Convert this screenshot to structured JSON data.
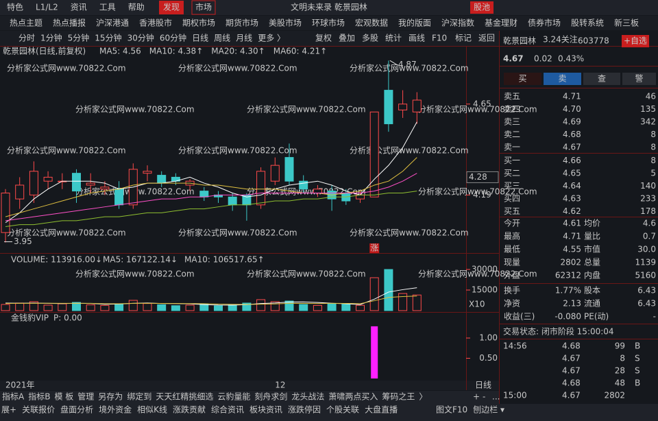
{
  "top_menu": [
    "特色",
    "L1/L2",
    "资讯",
    "工具",
    "帮助"
  ],
  "discover": "发现",
  "market": "市场",
  "window_title": "文明未来录  乾景园林",
  "stock_pool": "股池",
  "hot_tabs": [
    "热点主题",
    "热点播报",
    "沪深港通",
    "香港股市",
    "期权市场",
    "期货市场",
    "美股市场",
    "环球市场",
    "宏观数据",
    "我的版面",
    "沪深指数",
    "基金理财",
    "债券市场",
    "股转系统",
    "新三板"
  ],
  "periods": [
    "分时",
    "1分钟",
    "5分钟",
    "15分钟",
    "30分钟",
    "60分钟",
    "日线",
    "周线",
    "月线",
    "更多 〉"
  ],
  "period_active": 6,
  "tools": [
    "复权",
    "叠加",
    "多股",
    "统计",
    "画线",
    "F10",
    "标记",
    "返回"
  ],
  "watermark": "分析家公式网www.70822.Com",
  "kline": {
    "title": "乾景园林(日线,前复权)",
    "up_color": "#ff4a4a",
    "down_color": "#3cc8c8",
    "ylim": [
      3.9,
      4.885
    ],
    "yticks": [
      4.19,
      4.65
    ],
    "cursor_price": 4.28,
    "high_label": 4.87,
    "low_label": 3.95,
    "candles": [
      {
        "open": 4.0,
        "high": 4.22,
        "low": 3.95,
        "close": 4.2
      },
      {
        "open": 4.17,
        "high": 4.28,
        "low": 4.12,
        "close": 4.24
      },
      {
        "open": 4.19,
        "high": 4.36,
        "low": 4.15,
        "close": 4.31
      },
      {
        "open": 4.26,
        "high": 4.31,
        "low": 4.22,
        "close": 4.28
      },
      {
        "open": 4.26,
        "high": 4.3,
        "low": 4.22,
        "close": 4.26
      },
      {
        "open": 4.3,
        "high": 4.32,
        "low": 4.15,
        "close": 4.21
      },
      {
        "open": 4.24,
        "high": 4.3,
        "low": 4.2,
        "close": 4.25
      },
      {
        "open": 4.22,
        "high": 4.26,
        "low": 4.19,
        "close": 4.23
      },
      {
        "open": 4.22,
        "high": 4.26,
        "low": 4.12,
        "close": 4.14
      },
      {
        "open": 4.14,
        "high": 4.35,
        "low": 4.12,
        "close": 4.32
      },
      {
        "open": 4.3,
        "high": 4.34,
        "low": 4.26,
        "close": 4.31
      },
      {
        "open": 4.29,
        "high": 4.31,
        "low": 4.23,
        "close": 4.25
      },
      {
        "open": 4.28,
        "high": 4.3,
        "low": 4.24,
        "close": 4.26
      },
      {
        "open": 4.24,
        "high": 4.27,
        "low": 4.21,
        "close": 4.26
      },
      {
        "open": 4.21,
        "high": 4.23,
        "low": 4.16,
        "close": 4.18
      },
      {
        "open": 4.19,
        "high": 4.21,
        "low": 4.15,
        "close": 4.18
      },
      {
        "open": 4.18,
        "high": 4.2,
        "low": 4.11,
        "close": 4.14
      },
      {
        "open": 4.19,
        "high": 4.2,
        "low": 4.06,
        "close": 4.14
      },
      {
        "open": 4.14,
        "high": 4.33,
        "low": 4.12,
        "close": 4.31
      },
      {
        "open": 4.26,
        "high": 4.38,
        "low": 4.24,
        "close": 4.34
      },
      {
        "open": 4.38,
        "high": 4.45,
        "low": 4.24,
        "close": 4.26
      },
      {
        "open": 4.26,
        "high": 4.29,
        "low": 4.2,
        "close": 4.22
      },
      {
        "open": 4.2,
        "high": 4.24,
        "low": 4.18,
        "close": 4.22
      },
      {
        "open": 4.21,
        "high": 4.24,
        "low": 4.11,
        "close": 4.17
      },
      {
        "open": 4.2,
        "high": 4.22,
        "low": 4.14,
        "close": 4.16
      },
      {
        "open": 4.17,
        "high": 4.21,
        "low": 4.15,
        "close": 4.19
      },
      {
        "open": 4.18,
        "high": 4.61,
        "low": 4.18,
        "close": 4.61
      },
      {
        "open": 4.72,
        "high": 4.87,
        "low": 4.51,
        "close": 4.55
      },
      {
        "open": 4.62,
        "high": 4.72,
        "low": 4.58,
        "close": 4.65
      },
      {
        "open": 4.61,
        "high": 4.71,
        "low": 4.55,
        "close": 4.67
      }
    ],
    "ma": [
      {
        "name": "MA5: 4.56",
        "color": "#ffffff",
        "values": [
          4.05,
          4.1,
          4.17,
          4.22,
          4.26,
          4.26,
          4.26,
          4.25,
          4.22,
          4.23,
          4.25,
          4.25,
          4.26,
          4.28,
          4.25,
          4.23,
          4.2,
          4.18,
          4.19,
          4.22,
          4.24,
          4.25,
          4.26,
          4.24,
          4.21,
          4.19,
          4.27,
          4.34,
          4.43,
          4.56
        ]
      },
      {
        "name": "MA10: 4.38↑",
        "color": "#e0c040",
        "values": [
          4.08,
          4.1,
          4.12,
          4.14,
          4.16,
          4.18,
          4.2,
          4.21,
          4.22,
          4.24,
          4.25,
          4.25,
          4.25,
          4.25,
          4.24,
          4.24,
          4.23,
          4.22,
          4.22,
          4.22,
          4.21,
          4.2,
          4.2,
          4.19,
          4.2,
          4.21,
          4.24,
          4.26,
          4.31,
          4.38
        ]
      },
      {
        "name": "MA20: 4.30↑",
        "color": "#ff50c8",
        "values": [
          4.06,
          4.07,
          4.08,
          4.09,
          4.1,
          4.11,
          4.12,
          4.13,
          4.14,
          4.15,
          4.16,
          4.17,
          4.17,
          4.18,
          4.18,
          4.19,
          4.19,
          4.19,
          4.2,
          4.2,
          4.2,
          4.2,
          4.2,
          4.2,
          4.2,
          4.2,
          4.21,
          4.23,
          4.26,
          4.3
        ]
      },
      {
        "name": "MA60: 4.21↑",
        "color": "#90c030",
        "values": [
          4.03,
          4.04,
          4.04,
          4.05,
          4.06,
          4.06,
          4.07,
          4.08,
          4.08,
          4.09,
          4.1,
          4.1,
          4.11,
          4.12,
          4.12,
          4.13,
          4.14,
          4.14,
          4.15,
          4.16,
          4.16,
          4.17,
          4.17,
          4.18,
          4.18,
          4.19,
          4.19,
          4.2,
          4.2,
          4.21
        ]
      }
    ],
    "signal_labels": [
      null,
      null,
      null,
      null,
      null,
      null,
      null,
      null,
      null,
      null,
      null,
      null,
      null,
      null,
      null,
      null,
      null,
      null,
      null,
      null,
      null,
      null,
      null,
      null,
      null,
      null,
      "涨",
      null,
      null,
      null
    ],
    "dates": [
      "2021年",
      null,
      null,
      null,
      null,
      null,
      null,
      null,
      null,
      null,
      null,
      null,
      null,
      null,
      null,
      null,
      null,
      null,
      null,
      "12",
      null,
      null,
      null,
      null,
      null,
      null,
      null,
      null,
      null,
      null
    ],
    "period_label": "日线"
  },
  "volume": {
    "legend": "VOLUME: 113916.00↓",
    "ylim": [
      0,
      34000
    ],
    "yticks": [
      15000,
      30000
    ],
    "unit": "X10",
    "values": [
      4500,
      5500,
      6500,
      4000,
      5000,
      6000,
      4200,
      3800,
      5000,
      7500,
      5200,
      4300,
      3600,
      4000,
      4800,
      3500,
      4200,
      5500,
      8000,
      6500,
      7000,
      4500,
      3800,
      5200,
      4600,
      3900,
      24000,
      30000,
      12500,
      11391.6
    ],
    "ma": [
      {
        "name": "MA5: 167122.14↓",
        "color": "#ffffff",
        "values": [
          5500,
          5400,
          5500,
          5300,
          5100,
          5400,
          5240,
          4600,
          4800,
          5300,
          5540,
          5160,
          5120,
          4920,
          4380,
          4040,
          4020,
          4360,
          5200,
          5540,
          6240,
          6300,
          5960,
          5400,
          5020,
          4400,
          8340,
          13540,
          15280,
          16712.214
        ]
      },
      {
        "name": "MA10: 106517.65↑",
        "color": "#e0c040",
        "values": [
          5200,
          5300,
          5300,
          5400,
          5300,
          5300,
          5300,
          5000,
          5000,
          5300,
          5320,
          5280,
          5160,
          5110,
          5090,
          4720,
          4580,
          4520,
          4700,
          4870,
          5310,
          5220,
          5180,
          5300,
          5280,
          5090,
          7220,
          9620,
          10240,
          10651.765
        ]
      }
    ]
  },
  "indicator": {
    "name": "金钱豹VIP",
    "legend": "P: 0.00",
    "color": "#ff20ff",
    "ylim": [
      0,
      1.39
    ],
    "yticks": [
      {
        "value": 0.5,
        "label": "0.50"
      },
      {
        "value": 1,
        "label": "1.00"
      }
    ],
    "values": [
      null,
      null,
      null,
      null,
      null,
      null,
      null,
      null,
      null,
      null,
      null,
      null,
      null,
      null,
      null,
      null,
      null,
      null,
      null,
      null,
      null,
      null,
      null,
      null,
      null,
      null,
      1.29,
      null,
      null,
      null
    ]
  },
  "bottom_tabs": [
    "指标A",
    "指标B",
    "模 板",
    "管理",
    "另存为",
    "绑定到",
    "天天红精挑细选",
    "云豹量能",
    "刻舟求剑",
    "龙头战法",
    "萧啸两点买入",
    "筹码之王",
    "〉"
  ],
  "bottom_tools": [
    "+",
    "-",
    "..."
  ],
  "status_bar": [
    "展+",
    "关联报价",
    "盘面分析",
    "境外资金",
    "相似K线",
    "涨跌贡献",
    "综合资讯",
    "板块资讯",
    "涨跌停因",
    "个股关联",
    "大盘直播"
  ],
  "status_right": [
    "图文F10",
    "刨边栏 ▾"
  ],
  "quote": {
    "name": "乾景园林",
    "follow": "3.24关注",
    "code": "603778",
    "add": "+自选",
    "price": "4.67",
    "change": "0.02",
    "percent": "0.43%",
    "buttons": [
      "买",
      "卖",
      "查",
      "警"
    ],
    "book": [
      [
        "卖五",
        "4.71",
        "46",
        "#ff4a4a"
      ],
      [
        "卖四",
        "4.70",
        "135",
        "#ff4a4a"
      ],
      [
        "卖三",
        "4.69",
        "342",
        "#ff4a4a"
      ],
      [
        "卖二",
        "4.68",
        "8",
        "#ff4a4a"
      ],
      [
        "卖一",
        "4.67",
        "8",
        "#ff4a4a"
      ],
      [
        "买一",
        "4.66",
        "8",
        "#ff4a4a"
      ],
      [
        "买二",
        "4.65",
        "5",
        "#e8e8e8"
      ],
      [
        "买三",
        "4.64",
        "140",
        "#40e040"
      ],
      [
        "买四",
        "4.63",
        "233",
        "#40e040"
      ],
      [
        "买五",
        "4.62",
        "178",
        "#40e040"
      ]
    ],
    "stats": [
      [
        "今开",
        "4.61",
        "#40e040",
        "均价",
        "4.6",
        "#ff4a4a"
      ],
      [
        "最高",
        "4.71",
        "#ff4a4a",
        "量比",
        "0.7",
        "#e8e8e8"
      ],
      [
        "最低",
        "4.55",
        "#40e040",
        "市值",
        "30.0",
        "#e8e8e8"
      ],
      [
        "现量",
        "2802",
        "#d040ff",
        "总量",
        "1139",
        "#e8e8e8"
      ],
      [
        "外盘",
        "62312",
        "#ff4a4a",
        "内盘",
        "5160",
        "#40e040"
      ],
      [
        "换手",
        "1.77%",
        "#e8e8e8",
        "股本",
        "6.43",
        "#e8e8e8"
      ],
      [
        "净资",
        "2.13",
        "#e8e8e8",
        "流通",
        "6.43",
        "#e8e8e8"
      ],
      [
        "收益(三)",
        "-0.080",
        "#e8e8e8",
        "PE(动)",
        "-",
        "#e8e8e8"
      ]
    ],
    "status": "交易状态: 闭市阶段 15:00:04",
    "trades": [
      [
        "14:56",
        "4.68",
        "99",
        "B"
      ],
      [
        null,
        "4.67",
        "8",
        "S"
      ],
      [
        null,
        "4.67",
        "28",
        "S"
      ],
      [
        null,
        "4.68",
        "48",
        "B"
      ],
      [
        "15:00",
        "4.67",
        "2802",
        null
      ]
    ]
  }
}
